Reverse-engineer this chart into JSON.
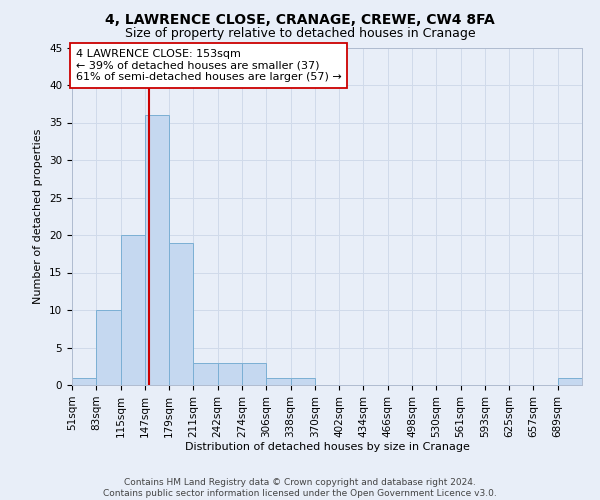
{
  "title": "4, LAWRENCE CLOSE, CRANAGE, CREWE, CW4 8FA",
  "subtitle": "Size of property relative to detached houses in Cranage",
  "xlabel": "Distribution of detached houses by size in Cranage",
  "ylabel": "Number of detached properties",
  "bins": [
    "51sqm",
    "83sqm",
    "115sqm",
    "147sqm",
    "179sqm",
    "211sqm",
    "242sqm",
    "274sqm",
    "306sqm",
    "338sqm",
    "370sqm",
    "402sqm",
    "434sqm",
    "466sqm",
    "498sqm",
    "530sqm",
    "561sqm",
    "593sqm",
    "625sqm",
    "657sqm",
    "689sqm"
  ],
  "values": [
    1,
    10,
    20,
    36,
    19,
    3,
    3,
    3,
    1,
    1,
    0,
    0,
    0,
    0,
    0,
    0,
    0,
    0,
    0,
    0,
    1
  ],
  "bar_color": "#c5d8f0",
  "bar_edge_color": "#7bafd4",
  "property_line_color": "#cc0000",
  "annotation_text": "4 LAWRENCE CLOSE: 153sqm\n← 39% of detached houses are smaller (37)\n61% of semi-detached houses are larger (57) →",
  "annotation_box_color": "#ffffff",
  "annotation_box_edge_color": "#cc0000",
  "ylim": [
    0,
    45
  ],
  "yticks": [
    0,
    5,
    10,
    15,
    20,
    25,
    30,
    35,
    40,
    45
  ],
  "grid_color": "#d0daea",
  "bg_color": "#e8eef8",
  "footer": "Contains HM Land Registry data © Crown copyright and database right 2024.\nContains public sector information licensed under the Open Government Licence v3.0.",
  "title_fontsize": 10,
  "subtitle_fontsize": 9,
  "axis_label_fontsize": 8,
  "tick_fontsize": 7.5,
  "annotation_fontsize": 8,
  "footer_fontsize": 6.5
}
